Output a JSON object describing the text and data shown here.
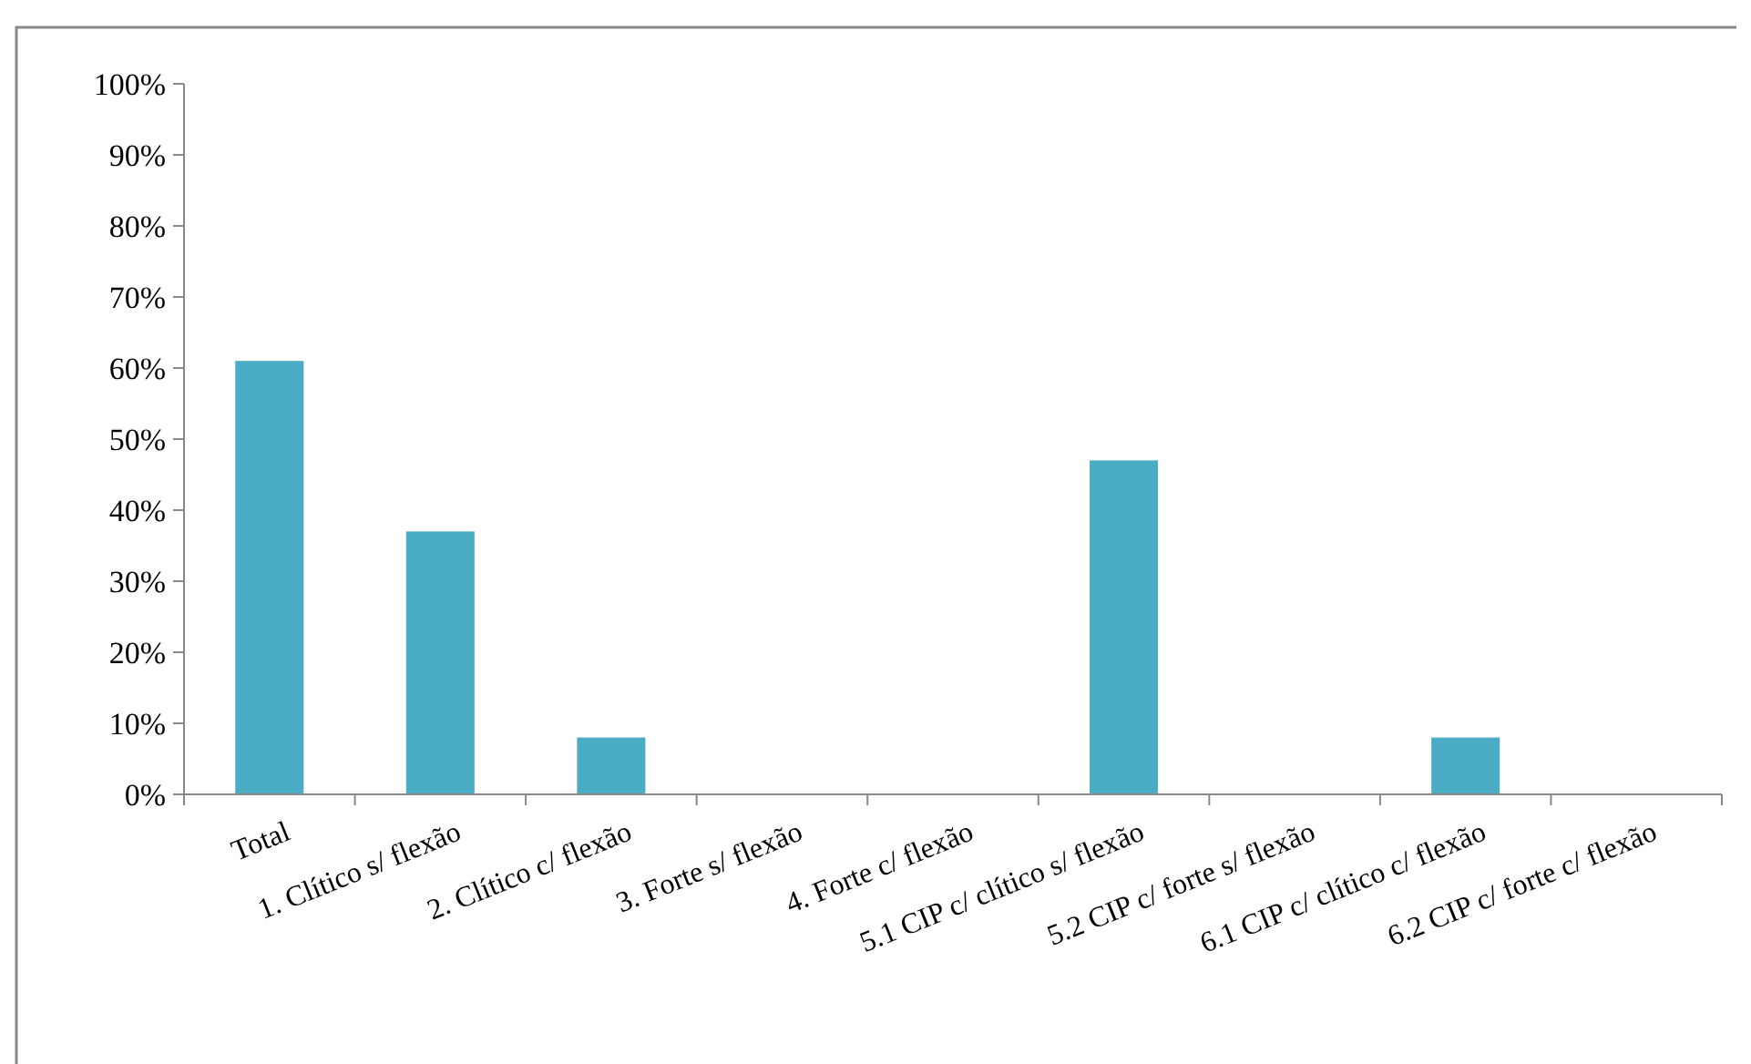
{
  "chart_data": {
    "type": "bar",
    "categories": [
      "Total",
      "1. Clítico s/ flexão",
      "2. Clítico c/ flexão",
      "3. Forte s/ flexão",
      "4. Forte c/ flexão",
      "5.1 CIP c/ clítico s/ flexão",
      "5.2 CIP c/ forte s/ flexão",
      "6.1 CIP c/ clítico c/ flexão",
      "6.2 CIP c/ forte c/ flexão"
    ],
    "values": [
      0.61,
      0.37,
      0.08,
      0,
      0,
      0.47,
      0,
      0.08,
      0
    ],
    "color": "#4bacc6",
    "ylim": [
      0,
      1
    ],
    "yticks": [
      {
        "value": 0,
        "label": "0%"
      },
      {
        "value": 0.1,
        "label": "10%"
      },
      {
        "value": 0.2,
        "label": "20%"
      },
      {
        "value": 0.3,
        "label": "30%"
      },
      {
        "value": 0.4,
        "label": "40%"
      },
      {
        "value": 0.5,
        "label": "50%"
      },
      {
        "value": 0.6,
        "label": "60%"
      },
      {
        "value": 0.7,
        "label": "70%"
      },
      {
        "value": 0.8,
        "label": "80%"
      },
      {
        "value": 0.9,
        "label": "90%"
      },
      {
        "value": 1,
        "label": "100%"
      }
    ],
    "grid": false
  }
}
